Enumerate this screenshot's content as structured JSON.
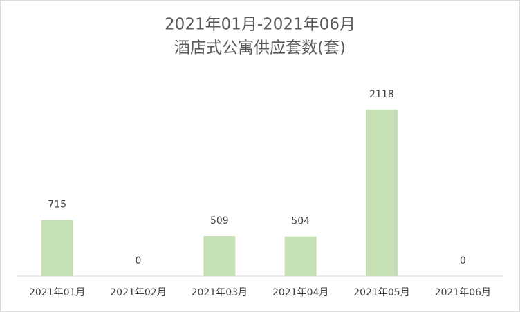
{
  "chart_data": {
    "type": "bar",
    "title": "2021年01月-2021年06月",
    "subtitle": "酒店式公寓供应套数(套)",
    "categories": [
      "2021年01月",
      "2021年02月",
      "2021年03月",
      "2021年04月",
      "2021年05月",
      "2021年06月"
    ],
    "values": [
      715,
      0,
      509,
      504,
      2118,
      0
    ],
    "color": "#c5e0b4",
    "ylim": [
      0,
      2500
    ]
  }
}
